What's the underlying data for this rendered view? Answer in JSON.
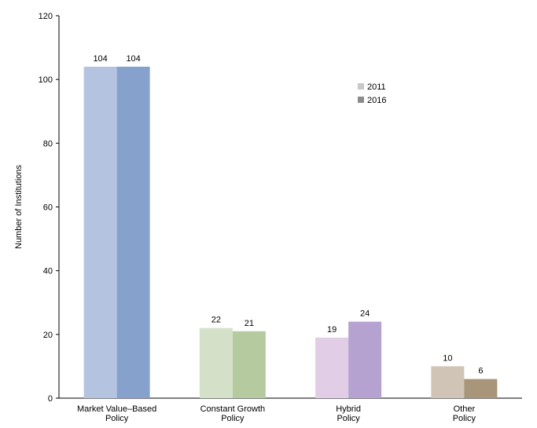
{
  "chart_data": {
    "type": "bar",
    "ylabel": "Number of Institutions",
    "ylim": [
      0,
      120
    ],
    "yticks": [
      0,
      20,
      40,
      60,
      80,
      100,
      120
    ],
    "categories": [
      [
        "Market Value–Based",
        "Policy"
      ],
      [
        "Constant Growth",
        "Policy"
      ],
      [
        "Hybrid",
        "Policy"
      ],
      [
        "Other",
        "Policy"
      ]
    ],
    "series": [
      {
        "name": "2011",
        "values": [
          104,
          22,
          19,
          10
        ],
        "legend_color": "#c8c8c8"
      },
      {
        "name": "2016",
        "values": [
          104,
          21,
          24,
          6
        ],
        "legend_color": "#8c8c8c"
      }
    ],
    "bar_colors": [
      [
        "#b4c4e0",
        "#87a1cd"
      ],
      [
        "#d5e0c9",
        "#b5cb9f"
      ],
      [
        "#e1cde6",
        "#b5a2d0"
      ],
      [
        "#cfc4b6",
        "#a8957a"
      ]
    ],
    "legend_position": "top-right",
    "grid": false
  }
}
